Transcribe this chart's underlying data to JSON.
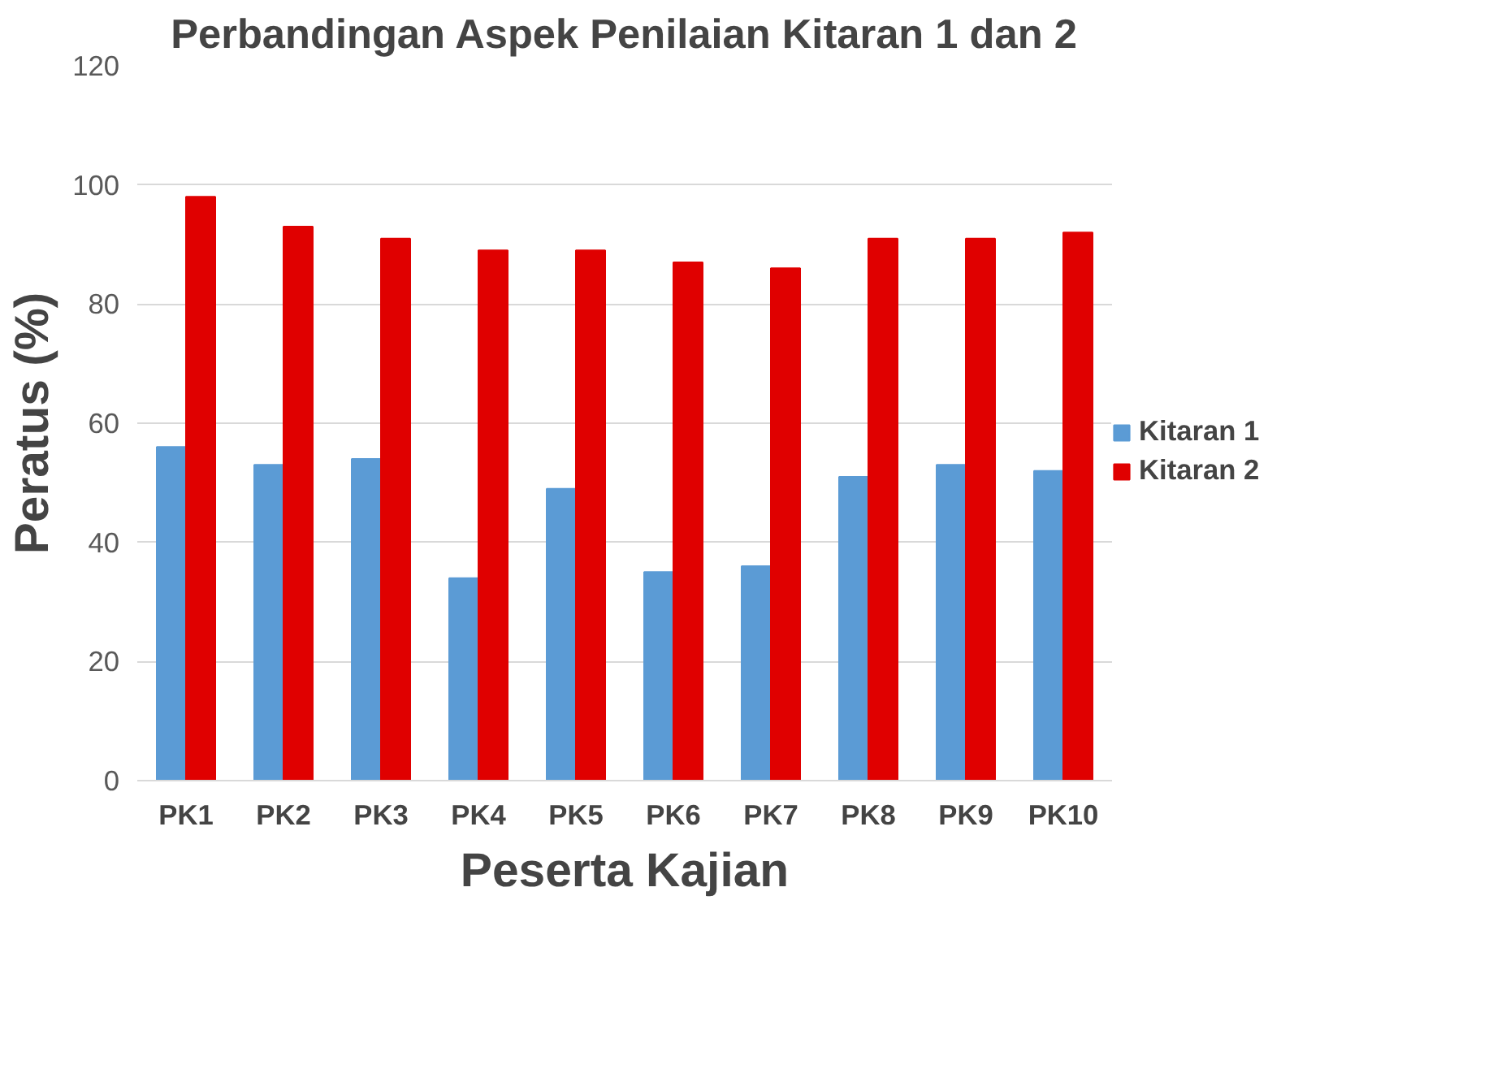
{
  "chart_data": {
    "type": "bar",
    "title": "Perbandingan Aspek Penilaian Kitaran 1 dan 2",
    "xlabel": "Peserta Kajian",
    "ylabel": "Peratus (%)",
    "categories": [
      "PK1",
      "PK2",
      "PK3",
      "PK4",
      "PK5",
      "PK6",
      "PK7",
      "PK8",
      "PK9",
      "PK10"
    ],
    "series": [
      {
        "name": "Kitaran 1",
        "color": "#5b9bd5",
        "values": [
          56,
          53,
          54,
          34,
          49,
          35,
          36,
          51,
          53,
          52
        ]
      },
      {
        "name": "Kitaran 2",
        "color": "#e00000",
        "values": [
          98,
          93,
          91,
          89,
          89,
          87,
          86,
          91,
          91,
          92
        ]
      }
    ],
    "ylim": [
      0,
      120
    ],
    "yticks": [
      0,
      20,
      40,
      60,
      80,
      100,
      120
    ],
    "grid": "y",
    "legend": "right"
  }
}
